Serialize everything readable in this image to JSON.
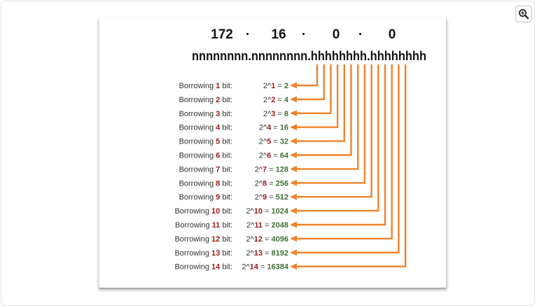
{
  "address_octets": [
    "172",
    "16",
    "0",
    "0"
  ],
  "octet_separator": "·",
  "mask_pattern": "nnnnnnnn.nnnnnnnn.hhhhhhhh.hhhhhhhh",
  "label_prefix": "Borrowing",
  "label_suffix": "bit:",
  "power_base": "2^",
  "equals": "=",
  "rows": [
    {
      "bits": "1",
      "result": "2"
    },
    {
      "bits": "2",
      "result": "4"
    },
    {
      "bits": "3",
      "result": "8"
    },
    {
      "bits": "4",
      "result": "16"
    },
    {
      "bits": "5",
      "result": "32"
    },
    {
      "bits": "6",
      "result": "64"
    },
    {
      "bits": "7",
      "result": "128"
    },
    {
      "bits": "8",
      "result": "256"
    },
    {
      "bits": "9",
      "result": "512"
    },
    {
      "bits": "10",
      "result": "1024"
    },
    {
      "bits": "11",
      "result": "2048"
    },
    {
      "bits": "12",
      "result": "4096"
    },
    {
      "bits": "13",
      "result": "8192"
    },
    {
      "bits": "14",
      "result": "16384"
    }
  ],
  "colors": {
    "bit_count": "#9a1a1a",
    "result": "#3f6f35",
    "arrow": "#f0822a"
  },
  "toolbar": {
    "zoom_icon": "zoom-in-icon"
  }
}
